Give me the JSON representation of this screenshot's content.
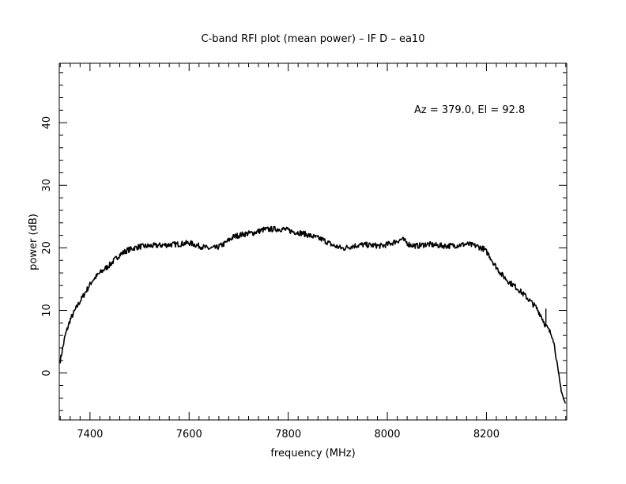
{
  "chart_data": {
    "type": "line",
    "title": "C-band RFI plot (mean power) – IF D – ea10",
    "xlabel": "frequency (MHz)",
    "ylabel": "power (dB)",
    "annotation": "Az = 379.0, El = 92.8",
    "xlim": [
      7338,
      8362
    ],
    "ylim": [
      -7.5,
      49.5
    ],
    "x_ticks": [
      7400,
      7600,
      7800,
      8000,
      8200
    ],
    "y_ticks": [
      0,
      10,
      20,
      30,
      40
    ],
    "line_color": "#000000",
    "grid": false,
    "series": [
      {
        "x": [
          7340,
          7345,
          7350,
          7360,
          7375,
          7390,
          7405,
          7420,
          7440,
          7460,
          7475,
          7490,
          7500,
          7520,
          7540,
          7560,
          7580,
          7600,
          7620,
          7640,
          7655,
          7670,
          7690,
          7710,
          7730,
          7750,
          7770,
          7790,
          7810,
          7830,
          7850,
          7870,
          7890,
          7910,
          7930,
          7950,
          7970,
          7990,
          8010,
          8030,
          8045,
          8060,
          8080,
          8100,
          8120,
          8140,
          8160,
          8180,
          8195,
          8205,
          8215,
          8230,
          8245,
          8260,
          8280,
          8300,
          8310,
          8318,
          8326,
          8334,
          8340,
          8344,
          8348,
          8352,
          8356,
          8360
        ],
        "y": [
          2.0,
          4.0,
          6.0,
          8.5,
          10.8,
          12.8,
          14.8,
          16.0,
          17.3,
          18.9,
          19.6,
          20.0,
          20.2,
          20.3,
          20.4,
          20.5,
          20.6,
          20.8,
          20.3,
          19.9,
          20.0,
          20.6,
          21.8,
          22.2,
          22.4,
          22.9,
          23.0,
          23.0,
          22.6,
          22.3,
          21.8,
          21.3,
          20.4,
          19.9,
          20.3,
          20.5,
          20.4,
          20.3,
          20.8,
          21.4,
          20.5,
          20.3,
          20.6,
          20.4,
          20.3,
          20.4,
          20.6,
          20.3,
          19.8,
          18.9,
          17.5,
          15.8,
          14.6,
          13.7,
          12.2,
          10.5,
          9.2,
          7.8,
          6.8,
          5.8,
          3.0,
          0.5,
          -1.5,
          -3.0,
          -4.3,
          -5.0
        ],
        "spike": {
          "x": 8320,
          "y_top": 10.3
        }
      }
    ]
  }
}
